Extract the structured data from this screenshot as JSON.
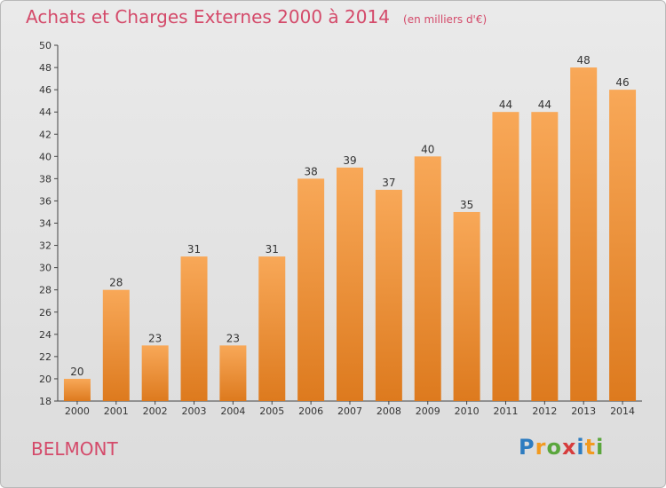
{
  "header": {
    "title": "Achats et Charges Externes 2000 à 2014",
    "unit": "(en milliers d'€)"
  },
  "footer": {
    "city": "BELMONT",
    "logo_letters": [
      "P",
      "r",
      "o",
      "x",
      "i",
      "t",
      "i"
    ],
    "logo_colors": [
      "#2e7cc0",
      "#f29a1f",
      "#5aa63c",
      "#d63c3c",
      "#2e7cc0",
      "#f29a1f",
      "#5aa63c"
    ]
  },
  "colors": {
    "title": "#d44a6a",
    "bar_top": "#f8a858",
    "bar_bottom": "#dd7a1e",
    "axis": "#444444"
  },
  "chart_data": {
    "type": "bar",
    "categories": [
      "2000",
      "2001",
      "2002",
      "2003",
      "2004",
      "2005",
      "2006",
      "2007",
      "2008",
      "2009",
      "2010",
      "2011",
      "2012",
      "2013",
      "2014"
    ],
    "values": [
      20,
      28,
      23,
      31,
      23,
      31,
      38,
      39,
      37,
      40,
      35,
      44,
      44,
      48,
      46
    ],
    "title": "Achats et Charges Externes 2000 à 2014",
    "ylim": [
      18,
      50
    ],
    "yticks": [
      18,
      20,
      22,
      24,
      26,
      28,
      30,
      32,
      34,
      36,
      38,
      40,
      42,
      44,
      46,
      48,
      50
    ],
    "grid": false,
    "legend": "none"
  }
}
